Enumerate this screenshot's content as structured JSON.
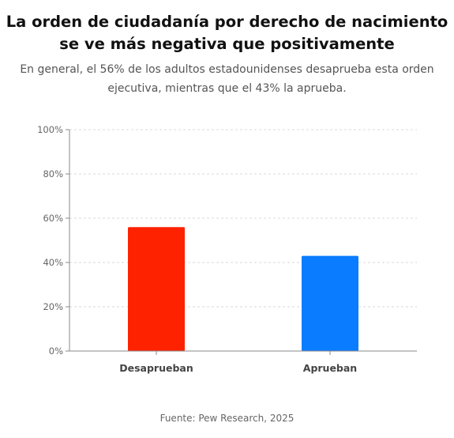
{
  "title_line1": "La orden de ciudadanía por derecho de nacimiento",
  "title_line2": "se ve más negativa que positivamente",
  "subtitle_line1": "En general, el 56% de los adultos estadounidenses desaprueba esta orden",
  "subtitle_line2": "ejecutiva, mientras que el 43% la aprueba.",
  "source": "Fuente: Pew Research, 2025",
  "chart_data": {
    "type": "bar",
    "categories": [
      "Desaprueban",
      "Aprueban"
    ],
    "values": [
      56,
      43
    ],
    "colors": [
      "#ff2200",
      "#0a7cff"
    ],
    "ylim": [
      0,
      100
    ],
    "yticks": [
      0,
      20,
      40,
      60,
      80,
      100
    ],
    "ytick_labels": [
      "0%",
      "20%",
      "40%",
      "60%",
      "80%",
      "100%"
    ],
    "grid": true,
    "grid_style": "dashed horizontal",
    "legend": false
  }
}
